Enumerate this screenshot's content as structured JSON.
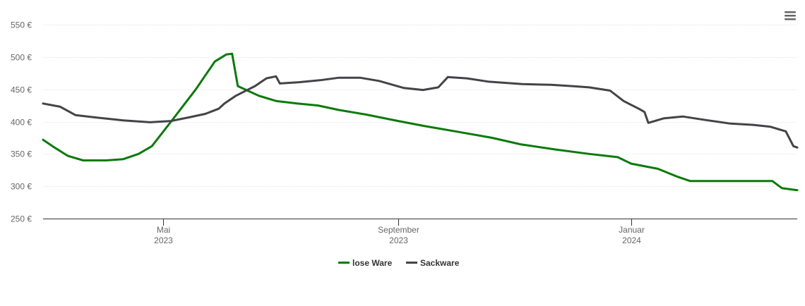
{
  "chart_data": {
    "type": "line",
    "currency_suffix": " €",
    "y_ticks": [
      250,
      300,
      350,
      400,
      450,
      500,
      550
    ],
    "y_tick_labels": [
      "250 €",
      "300 €",
      "350 €",
      "400 €",
      "450 €",
      "500 €",
      "550 €"
    ],
    "ylim": [
      250,
      550
    ],
    "xlim": [
      "2023-02-27",
      "2024-03-28"
    ],
    "x_ticks": [
      {
        "date": "2023-05-01",
        "month": "Mai",
        "year": "2023"
      },
      {
        "date": "2023-09-01",
        "month": "September",
        "year": "2023"
      },
      {
        "date": "2024-01-01",
        "month": "Januar",
        "year": "2024"
      }
    ],
    "grid": true,
    "legend_position": "bottom-center",
    "series": [
      {
        "name": "lose Ware",
        "color": "#0a7a0a",
        "points": [
          [
            "2023-02-27",
            372
          ],
          [
            "2023-03-05",
            360
          ],
          [
            "2023-03-12",
            347
          ],
          [
            "2023-03-20",
            340
          ],
          [
            "2023-04-01",
            340
          ],
          [
            "2023-04-10",
            342
          ],
          [
            "2023-04-18",
            350
          ],
          [
            "2023-04-25",
            362
          ],
          [
            "2023-05-05",
            400
          ],
          [
            "2023-05-18",
            450
          ],
          [
            "2023-05-28",
            493
          ],
          [
            "2023-06-03",
            504
          ],
          [
            "2023-06-06",
            505
          ],
          [
            "2023-06-09",
            455
          ],
          [
            "2023-06-20",
            440
          ],
          [
            "2023-06-29",
            432
          ],
          [
            "2023-07-10",
            428
          ],
          [
            "2023-07-21",
            425
          ],
          [
            "2023-08-01",
            418
          ],
          [
            "2023-08-15",
            411
          ],
          [
            "2023-09-01",
            401
          ],
          [
            "2023-09-15",
            393
          ],
          [
            "2023-10-01",
            385
          ],
          [
            "2023-10-20",
            375
          ],
          [
            "2023-11-04",
            365
          ],
          [
            "2023-11-22",
            357
          ],
          [
            "2023-12-10",
            350
          ],
          [
            "2023-12-25",
            345
          ],
          [
            "2024-01-01",
            335
          ],
          [
            "2024-01-15",
            327
          ],
          [
            "2024-01-25",
            315
          ],
          [
            "2024-02-01",
            308
          ],
          [
            "2024-02-20",
            308
          ],
          [
            "2024-03-15",
            308
          ],
          [
            "2024-03-20",
            297
          ],
          [
            "2024-03-28",
            294
          ]
        ]
      },
      {
        "name": "Sackware",
        "color": "#434348",
        "points": [
          [
            "2023-02-27",
            428
          ],
          [
            "2023-03-08",
            423
          ],
          [
            "2023-03-16",
            410
          ],
          [
            "2023-03-28",
            406
          ],
          [
            "2023-04-10",
            402
          ],
          [
            "2023-04-24",
            399
          ],
          [
            "2023-05-05",
            401
          ],
          [
            "2023-05-15",
            407
          ],
          [
            "2023-05-23",
            412
          ],
          [
            "2023-05-30",
            420
          ],
          [
            "2023-06-02",
            428
          ],
          [
            "2023-06-08",
            440
          ],
          [
            "2023-06-18",
            455
          ],
          [
            "2023-06-24",
            467
          ],
          [
            "2023-06-29",
            470
          ],
          [
            "2023-07-01",
            459
          ],
          [
            "2023-07-11",
            461
          ],
          [
            "2023-07-22",
            464
          ],
          [
            "2023-08-01",
            468
          ],
          [
            "2023-08-12",
            468
          ],
          [
            "2023-08-22",
            463
          ],
          [
            "2023-09-04",
            452
          ],
          [
            "2023-09-14",
            449
          ],
          [
            "2023-09-22",
            453
          ],
          [
            "2023-09-27",
            469
          ],
          [
            "2023-10-07",
            467
          ],
          [
            "2023-10-18",
            462
          ],
          [
            "2023-11-05",
            458
          ],
          [
            "2023-11-20",
            457
          ],
          [
            "2023-12-01",
            455
          ],
          [
            "2023-12-10",
            453
          ],
          [
            "2023-12-21",
            448
          ],
          [
            "2023-12-28",
            432
          ],
          [
            "2024-01-05",
            420
          ],
          [
            "2024-01-08",
            415
          ],
          [
            "2024-01-10",
            398
          ],
          [
            "2024-01-18",
            405
          ],
          [
            "2024-01-28",
            408
          ],
          [
            "2024-02-08",
            403
          ],
          [
            "2024-02-22",
            397
          ],
          [
            "2024-03-05",
            395
          ],
          [
            "2024-03-14",
            392
          ],
          [
            "2024-03-22",
            385
          ],
          [
            "2024-03-26",
            362
          ],
          [
            "2024-03-28",
            360
          ]
        ]
      }
    ]
  }
}
